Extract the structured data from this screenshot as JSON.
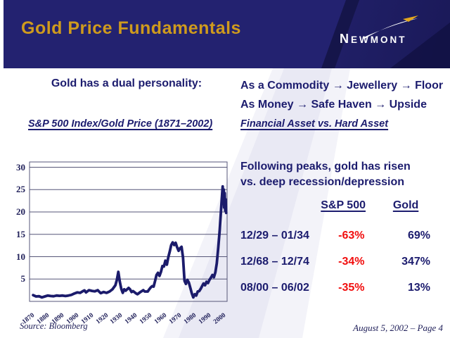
{
  "slide": {
    "header": {
      "title": "Gold Price Fundamentals",
      "logo": "NEWMONT"
    },
    "intro": {
      "left_heading": "Gold has a dual personality:",
      "right_lines": [
        "As a Commodity → Jewellery → Floor",
        "As Money → Safe Haven → Upside"
      ],
      "left_subtitle": "S&P 500 Index/Gold Price (1871–2002)",
      "right_subtitle": "Financial Asset vs. Hard Asset"
    },
    "panel": {
      "heading_lines": [
        "Following peaks, gold has risen",
        "vs. deep recession/depression"
      ]
    },
    "footer": {
      "source": "Source: Bloomberg",
      "date_page": "August 5, 2002 – Page 4"
    },
    "colors": {
      "header_bg": "#232270",
      "title_gold": "#cf9b1d",
      "navy_text": "#1c1c6e",
      "negative_red": "#f10e0e",
      "chart_line": "#1b1b6b",
      "wedge_lavender": "#e9e9f4"
    }
  },
  "table": {
    "col_headers": [
      "S&P 500",
      "Gold"
    ],
    "rows": [
      {
        "period": "12/29 – 01/34",
        "sp500": "-63%",
        "gold": "69%"
      },
      {
        "period": "12/68 – 12/74",
        "sp500": "-34%",
        "gold": "347%"
      },
      {
        "period": "08/00 – 06/02",
        "sp500": "-35%",
        "gold": "13%"
      }
    ]
  },
  "chart_data": {
    "type": "line",
    "title": "S&P 500 Index/Gold Price (1871–2002)",
    "xlabel": "",
    "ylabel": "",
    "xlim": [
      1870,
      2003
    ],
    "ylim": [
      0,
      31
    ],
    "grid": "horizontal",
    "legend": "none",
    "x_ticks": [
      1870,
      1880,
      1890,
      1900,
      1910,
      1920,
      1930,
      1940,
      1950,
      1960,
      1970,
      1980,
      1990,
      2000
    ],
    "y_ticks": [
      30,
      25,
      20,
      15,
      10,
      5
    ],
    "source": "Bloomberg",
    "series": [
      {
        "name": "S&P 500 Index / Gold Price ratio",
        "points": [
          [
            1871,
            1.4
          ],
          [
            1873,
            1.1
          ],
          [
            1875,
            1.15
          ],
          [
            1877,
            0.9
          ],
          [
            1879,
            1.1
          ],
          [
            1881,
            1.3
          ],
          [
            1883,
            1.2
          ],
          [
            1885,
            1.15
          ],
          [
            1887,
            1.3
          ],
          [
            1889,
            1.25
          ],
          [
            1891,
            1.3
          ],
          [
            1893,
            1.2
          ],
          [
            1895,
            1.3
          ],
          [
            1897,
            1.45
          ],
          [
            1899,
            1.75
          ],
          [
            1901,
            2.0
          ],
          [
            1903,
            1.9
          ],
          [
            1905,
            2.3
          ],
          [
            1906,
            2.45
          ],
          [
            1907,
            2.0
          ],
          [
            1909,
            2.5
          ],
          [
            1911,
            2.35
          ],
          [
            1913,
            2.25
          ],
          [
            1915,
            2.5
          ],
          [
            1917,
            1.85
          ],
          [
            1919,
            2.1
          ],
          [
            1921,
            1.9
          ],
          [
            1923,
            2.2
          ],
          [
            1925,
            2.7
          ],
          [
            1927,
            3.6
          ],
          [
            1928,
            4.8
          ],
          [
            1929,
            6.6
          ],
          [
            1930,
            4.4
          ],
          [
            1931,
            2.8
          ],
          [
            1932,
            1.9
          ],
          [
            1933,
            2.7
          ],
          [
            1934,
            2.4
          ],
          [
            1936,
            3.0
          ],
          [
            1937,
            2.7
          ],
          [
            1938,
            2.1
          ],
          [
            1939,
            2.3
          ],
          [
            1941,
            1.8
          ],
          [
            1942,
            1.6
          ],
          [
            1944,
            2.1
          ],
          [
            1946,
            2.5
          ],
          [
            1947,
            2.2
          ],
          [
            1949,
            2.2
          ],
          [
            1950,
            2.7
          ],
          [
            1951,
            3.1
          ],
          [
            1952,
            3.4
          ],
          [
            1953,
            3.3
          ],
          [
            1954,
            4.6
          ],
          [
            1955,
            5.9
          ],
          [
            1956,
            6.4
          ],
          [
            1957,
            5.7
          ],
          [
            1958,
            6.6
          ],
          [
            1959,
            7.9
          ],
          [
            1960,
            7.8
          ],
          [
            1961,
            9.1
          ],
          [
            1962,
            8.2
          ],
          [
            1963,
            9.9
          ],
          [
            1964,
            11.2
          ],
          [
            1965,
            12.6
          ],
          [
            1966,
            13.2
          ],
          [
            1967,
            12.6
          ],
          [
            1968,
            13.1
          ],
          [
            1969,
            12.1
          ],
          [
            1970,
            11.3
          ],
          [
            1971,
            11.9
          ],
          [
            1972,
            12.2
          ],
          [
            1973,
            9.8
          ],
          [
            1974,
            4.6
          ],
          [
            1975,
            3.9
          ],
          [
            1976,
            4.8
          ],
          [
            1977,
            4.2
          ],
          [
            1978,
            3.0
          ],
          [
            1979,
            1.8
          ],
          [
            1980,
            0.9
          ],
          [
            1981,
            1.6
          ],
          [
            1982,
            1.3
          ],
          [
            1983,
            2.2
          ],
          [
            1984,
            2.3
          ],
          [
            1985,
            2.8
          ],
          [
            1986,
            3.4
          ],
          [
            1987,
            4.0
          ],
          [
            1988,
            3.6
          ],
          [
            1989,
            4.4
          ],
          [
            1990,
            4.1
          ],
          [
            1991,
            4.8
          ],
          [
            1992,
            5.3
          ],
          [
            1993,
            5.9
          ],
          [
            1994,
            5.4
          ],
          [
            1995,
            6.5
          ],
          [
            1996,
            8.5
          ],
          [
            1997,
            12.0
          ],
          [
            1998,
            16.0
          ],
          [
            1999,
            21.0
          ],
          [
            1999.6,
            24.0
          ],
          [
            2000,
            25.7
          ],
          [
            2000.3,
            22.3
          ],
          [
            2000.7,
            25.0
          ],
          [
            2001,
            21.0
          ],
          [
            2001.4,
            24.2
          ],
          [
            2001.7,
            20.3
          ],
          [
            2002,
            22.8
          ],
          [
            2002.4,
            19.8
          ]
        ]
      }
    ]
  }
}
